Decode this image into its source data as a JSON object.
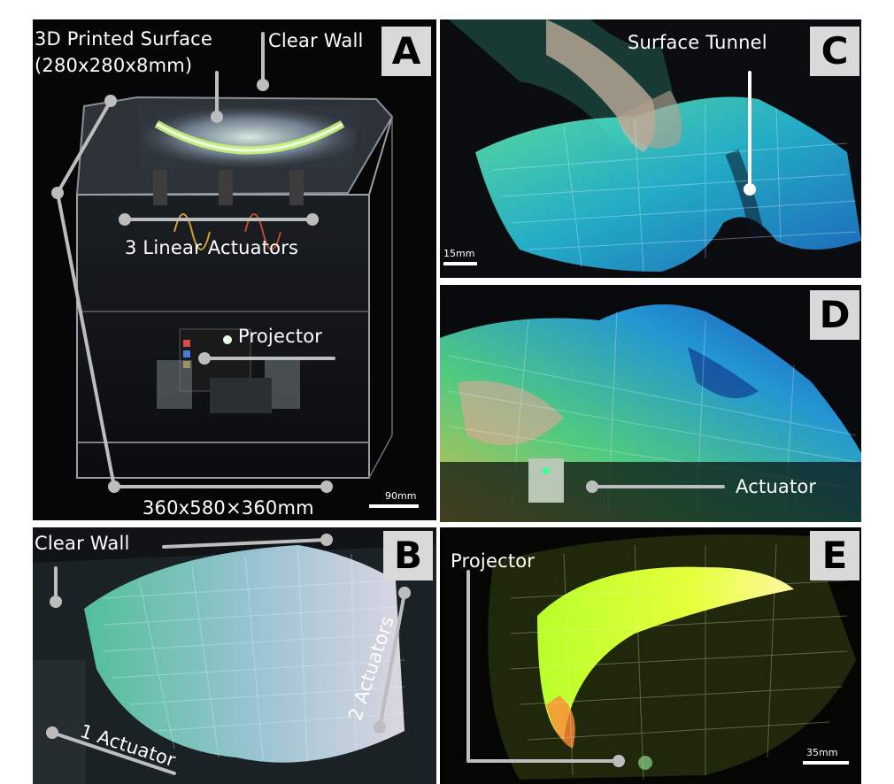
{
  "figure": {
    "panels": [
      {
        "id": "A",
        "badge": "A",
        "labels": {
          "surface_title": "3D Printed Surface",
          "surface_dims": "(280x280x8mm)",
          "clear_wall": "Clear Wall",
          "actuators": "3 Linear Actuators",
          "projector": "Projector",
          "box_dims": "360x580×360mm"
        },
        "scale": "90mm"
      },
      {
        "id": "B",
        "badge": "B",
        "labels": {
          "clear_wall": "Clear Wall",
          "one_actuator": "1 Actuator",
          "two_actuators": "2 Actuators"
        }
      },
      {
        "id": "C",
        "badge": "C",
        "labels": {
          "tunnel": "Surface Tunnel"
        },
        "scale": "15mm"
      },
      {
        "id": "D",
        "badge": "D",
        "labels": {
          "actuator": "Actuator"
        }
      },
      {
        "id": "E",
        "badge": "E",
        "labels": {
          "projector": "Projector"
        },
        "scale": "35mm"
      }
    ],
    "colors": {
      "badge_bg": "#d9d9d9",
      "callout_line": "#bdbdbd",
      "label_text": "#ffffff",
      "glow_green": "#7dff6a",
      "glow_cyan": "#3fd7ff",
      "glow_yellow": "#e9ff3a"
    }
  }
}
